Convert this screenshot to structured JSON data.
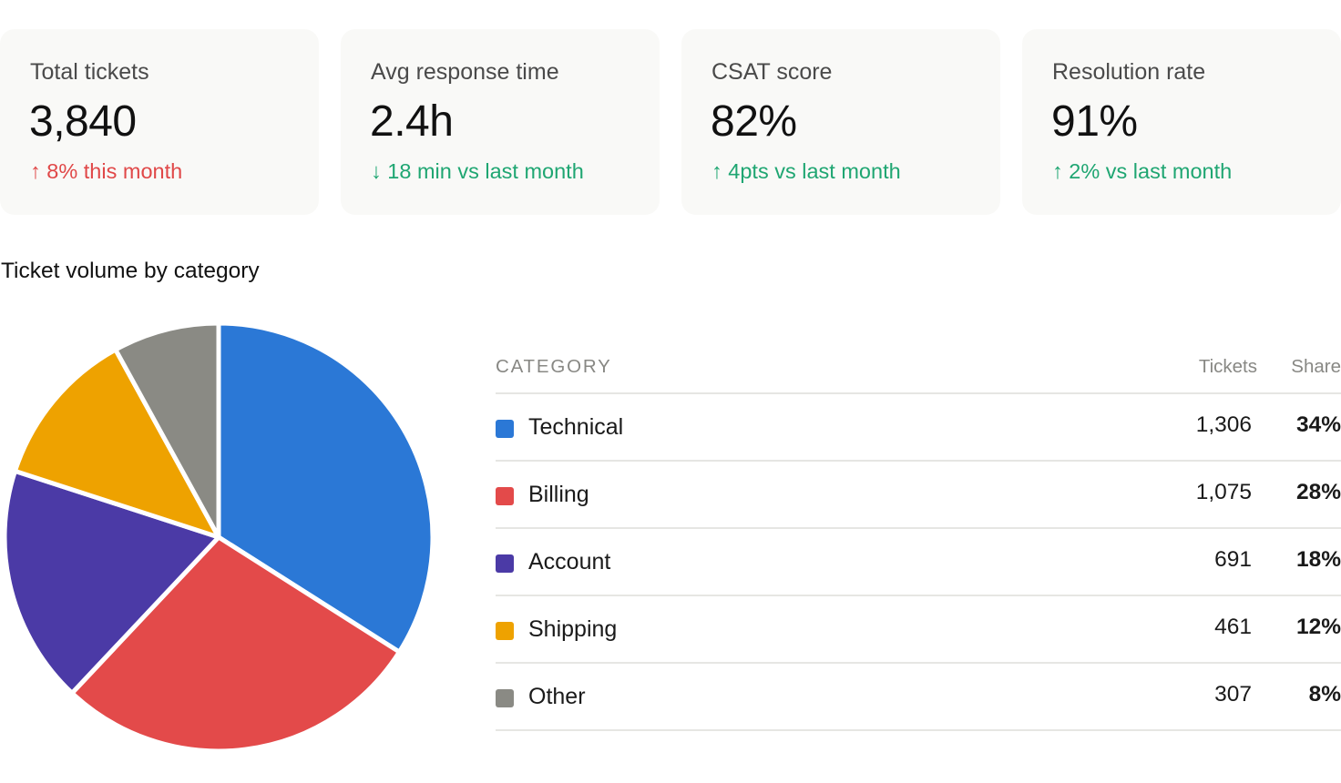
{
  "kpis": [
    {
      "label": "Total tickets",
      "value": "3,840",
      "delta": "↑ 8% this month",
      "delta_color": "#e04848"
    },
    {
      "label": "Avg response time",
      "value": "2.4h",
      "delta": "↓ 18 min vs last month",
      "delta_color": "#1fa672"
    },
    {
      "label": "CSAT score",
      "value": "82%",
      "delta": "↑ 4pts vs last month",
      "delta_color": "#1fa672"
    },
    {
      "label": "Resolution rate",
      "value": "91%",
      "delta": "↑ 2% vs last month",
      "delta_color": "#1fa672"
    }
  ],
  "section": {
    "title": "Ticket volume by category"
  },
  "table": {
    "header_category": "CATEGORY",
    "header_tickets": "Tickets",
    "header_share": "Share"
  },
  "chart_data": {
    "type": "pie",
    "title": "Ticket volume by category",
    "slices": [
      {
        "label": "Technical",
        "value": 1306,
        "tickets_label": "1,306",
        "share_label": "34%",
        "color": "#2b78d6"
      },
      {
        "label": "Billing",
        "value": 1075,
        "tickets_label": "1,075",
        "share_label": "28%",
        "color": "#e34a4a"
      },
      {
        "label": "Account",
        "value": 691,
        "tickets_label": "691",
        "share_label": "18%",
        "color": "#4b3aa6"
      },
      {
        "label": "Shipping",
        "value": 461,
        "tickets_label": "461",
        "share_label": "12%",
        "color": "#eea200"
      },
      {
        "label": "Other",
        "value": 307,
        "tickets_label": "307",
        "share_label": "8%",
        "color": "#8a8a84"
      }
    ],
    "legend": "right",
    "start": "12 o'clock",
    "direction": "clockwise"
  }
}
